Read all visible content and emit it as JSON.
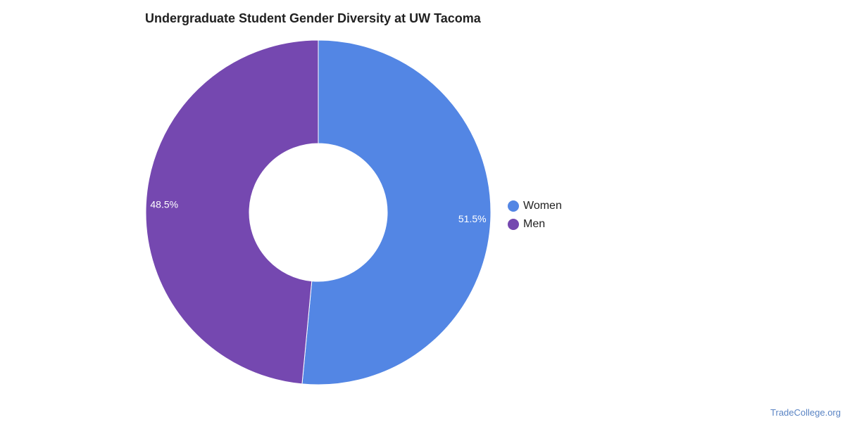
{
  "chart_data": {
    "type": "pie",
    "variant": "donut",
    "title": "Undergraduate Student Gender Diversity at UW Tacoma",
    "categories": [
      "Women",
      "Men"
    ],
    "values": [
      51.5,
      48.5
    ],
    "labels": [
      "51.5%",
      "48.5%"
    ],
    "colors": [
      "#5386e4",
      "#7548b0"
    ],
    "legend_position": "right"
  },
  "watermark": "TradeCollege.org"
}
